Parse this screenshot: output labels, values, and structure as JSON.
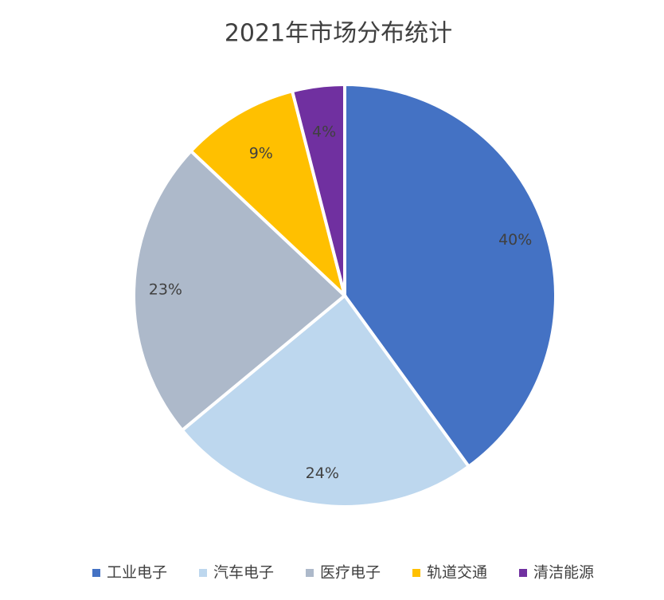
{
  "chart_data": {
    "type": "pie",
    "title": "2021年市场分布统计",
    "categories": [
      "工业电子",
      "汽车电子",
      "医疗电子",
      "轨道交通",
      "清洁能源"
    ],
    "values": [
      40,
      24,
      23,
      9,
      4
    ],
    "value_labels": [
      "40%",
      "24%",
      "23%",
      "9%",
      "4%"
    ],
    "colors": [
      "#4472c4",
      "#bdd7ee",
      "#adb9ca",
      "#ffc000",
      "#7030a0"
    ],
    "legend": "bottom"
  }
}
